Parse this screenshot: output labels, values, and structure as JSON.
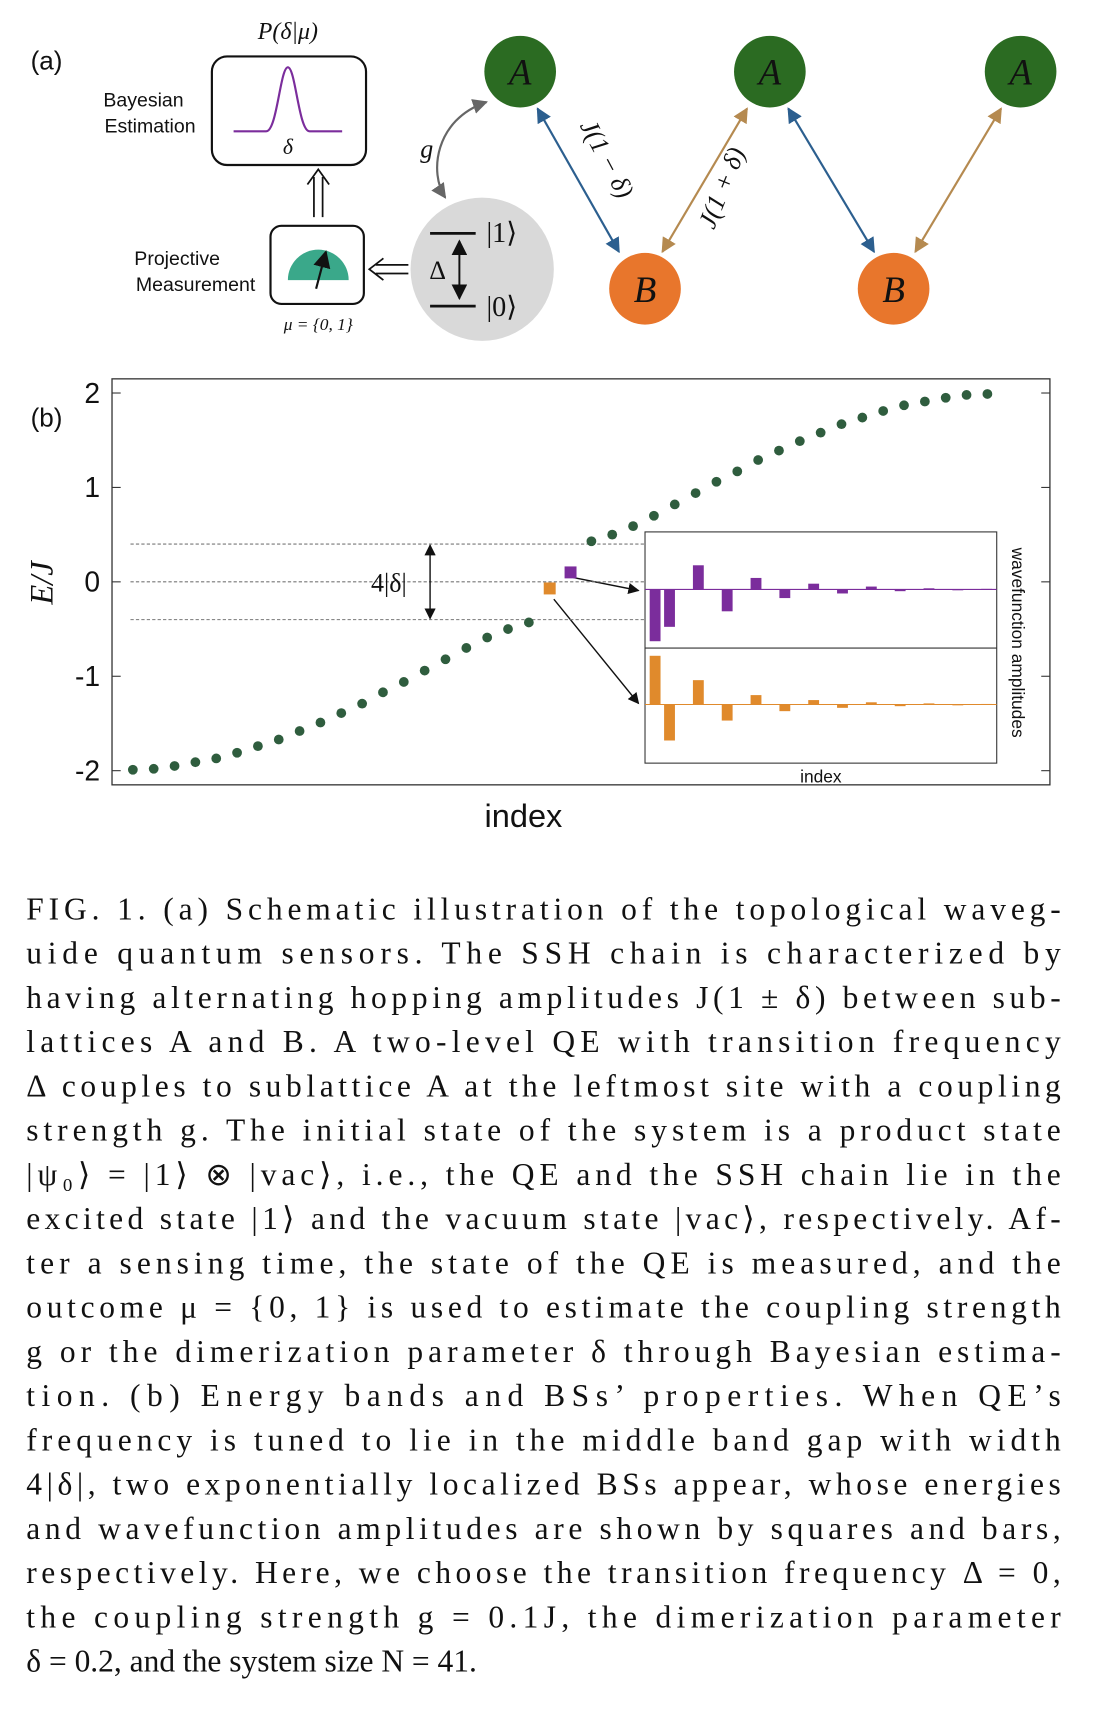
{
  "panel_a": {
    "label": "(a)",
    "likelihood": "P(δ|μ)",
    "estimation": [
      "Bayesian",
      "Estimation"
    ],
    "delta": "δ",
    "measurement": [
      "Projective",
      "Measurement"
    ],
    "outcome": "μ = {0, 1}",
    "coupling": "g",
    "levels": [
      "|1⟩",
      "|0⟩"
    ],
    "gap": "Δ",
    "sites": [
      "A",
      "A",
      "A",
      "B",
      "B"
    ],
    "hoppings": [
      "J(1 − δ)",
      "J(1 + δ)"
    ]
  },
  "chart_data": {
    "type": "scatter",
    "panel_label": "(b)",
    "xlabel": "index",
    "ylabel": "E/J",
    "xlim": [
      0,
      45
    ],
    "ylim": [
      -2.15,
      2.15
    ],
    "yticks": [
      -2,
      -1,
      0,
      1,
      2
    ],
    "hlines": [
      0.4,
      0,
      -0.4
    ],
    "gap_label": "4|δ|",
    "series": [
      {
        "color": "#2f5d3e",
        "marker": "circle",
        "x": [
          1,
          2,
          3,
          4,
          5,
          6,
          7,
          8,
          9,
          10,
          11,
          12,
          13,
          14,
          15,
          16,
          17,
          18,
          19,
          20,
          23,
          24,
          25,
          26,
          27,
          28,
          29,
          30,
          31,
          32,
          33,
          34,
          35,
          36,
          37,
          38,
          39,
          40,
          41,
          42
        ],
        "values": [
          -1.99,
          -1.98,
          -1.95,
          -1.91,
          -1.87,
          -1.81,
          -1.74,
          -1.67,
          -1.58,
          -1.49,
          -1.39,
          -1.29,
          -1.17,
          -1.06,
          -0.94,
          -0.82,
          -0.7,
          -0.59,
          -0.5,
          -0.43,
          0.43,
          0.5,
          0.59,
          0.7,
          0.82,
          0.94,
          1.06,
          1.17,
          1.29,
          1.39,
          1.49,
          1.58,
          1.67,
          1.74,
          1.81,
          1.87,
          1.91,
          1.95,
          1.98,
          1.99
        ]
      },
      {
        "color": "#e08a2c",
        "marker": "square",
        "x": [
          21
        ],
        "values": [
          -0.07
        ]
      },
      {
        "color": "#7b2d9c",
        "marker": "square",
        "x": [
          22
        ],
        "values": [
          0.1
        ]
      }
    ],
    "inset": {
      "xlabel": "index",
      "ylabel": "wavefunction amplitudes",
      "xlim": [
        -0.7,
        23.7
      ],
      "ylim": [
        -1,
        1
      ],
      "series": [
        {
          "color": "#7b2d9c",
          "values": [
            -0.9,
            -0.65,
            0,
            0.42,
            0,
            -0.38,
            0,
            0.2,
            0,
            -0.15,
            0,
            0.1,
            0,
            -0.07,
            0,
            0.05,
            0,
            -0.03,
            0,
            0.02,
            0,
            -0.015,
            0,
            0.01
          ]
        },
        {
          "color": "#e08a2c",
          "values": [
            0.88,
            -0.65,
            0,
            0.44,
            0,
            -0.29,
            0,
            0.17,
            0,
            -0.12,
            0,
            0.08,
            0,
            -0.06,
            0,
            0.04,
            0,
            -0.03,
            0,
            0.02,
            0,
            -0.015,
            0,
            0.01
          ]
        }
      ]
    }
  },
  "caption": {
    "lines": [
      "FIG. 1.   (a) Schematic illustration of the topological waveg-",
      "uide quantum sensors.  The SSH chain is characterized by",
      "having alternating hopping amplitudes J(1 ± δ) between sub-",
      "lattices A and B.  A two-level QE with transition frequency",
      "Δ couples to sublattice A at the leftmost site with a coupling",
      "strength g.  The initial state of the system is a product state",
      "|ψ₀⟩ = |1⟩ ⊗ |vac⟩, i.e., the QE and the SSH chain lie in the",
      "excited state |1⟩ and the vacuum state |vac⟩, respectively.  Af-",
      "ter a sensing time, the state of the QE is measured, and the",
      "outcome μ = {0, 1} is used to estimate the coupling strength",
      "g or the dimerization parameter δ through Bayesian estima-",
      "tion.  (b) Energy bands and BSs’ properties.  When QE’s",
      "frequency is tuned to lie in the middle band gap with width",
      "4|δ|, two exponentially localized BSs appear, whose energies",
      "and wavefunction amplitudes are shown by squares and bars,",
      "respectively.  Here, we choose the transition frequency Δ = 0,",
      "the coupling strength g = 0.1J, the dimerization parameter",
      "δ = 0.2, and the system size N = 41."
    ]
  }
}
